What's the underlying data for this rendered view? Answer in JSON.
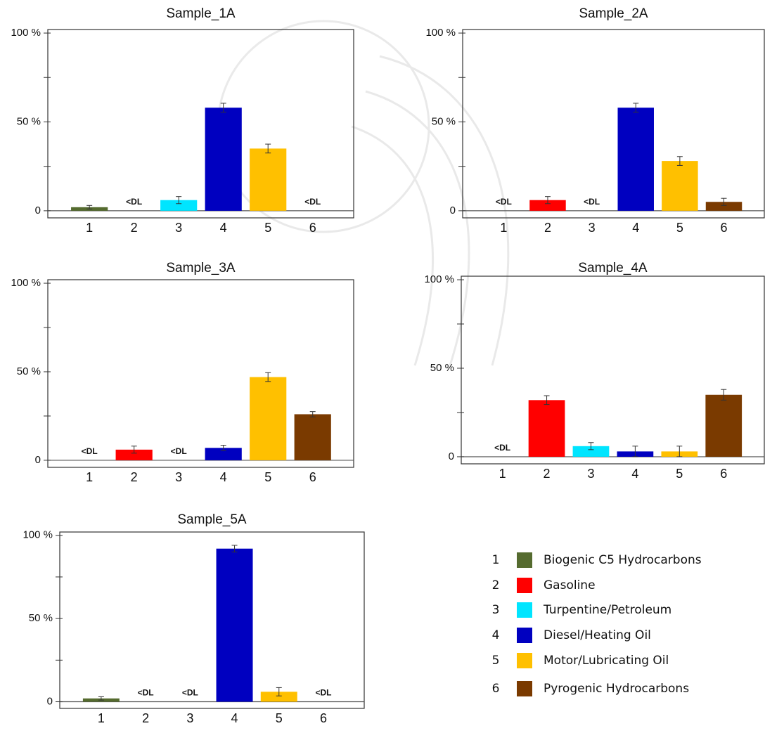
{
  "chart_data": [
    {
      "type": "bar",
      "title": "Sample_1A",
      "categories": [
        "1",
        "2",
        "3",
        "4",
        "5",
        "6"
      ],
      "values": [
        2,
        null,
        6,
        58,
        35,
        null
      ],
      "errors": [
        1,
        null,
        2,
        2.5,
        2.5,
        null
      ],
      "value_labels": [
        null,
        "<DL",
        null,
        null,
        null,
        "<DL"
      ],
      "colors": [
        "#556b2f",
        "#ff0000",
        "#00e5ff",
        "#0000c0",
        "#ffc000",
        "#7a3a00"
      ],
      "ylim": [
        -4,
        102
      ],
      "yticks": [
        0,
        {
          "value": 50,
          "label": "50 %"
        },
        {
          "value": 100,
          "label": "100 %"
        }
      ],
      "minor_yticks": [
        25,
        75
      ],
      "grid": false
    },
    {
      "type": "bar",
      "title": "Sample_2A",
      "categories": [
        "1",
        "2",
        "3",
        "4",
        "5",
        "6"
      ],
      "values": [
        null,
        6,
        null,
        58,
        28,
        5
      ],
      "errors": [
        null,
        2,
        null,
        2.5,
        2.5,
        2
      ],
      "value_labels": [
        "<DL",
        null,
        "<DL",
        null,
        null,
        null
      ],
      "colors": [
        "#556b2f",
        "#ff0000",
        "#00e5ff",
        "#0000c0",
        "#ffc000",
        "#7a3a00"
      ],
      "ylim": [
        -4,
        102
      ],
      "yticks": [
        0,
        {
          "value": 50,
          "label": "50 %"
        },
        {
          "value": 100,
          "label": "100 %"
        }
      ],
      "minor_yticks": [
        25,
        75
      ],
      "grid": false
    },
    {
      "type": "bar",
      "title": "Sample_3A",
      "categories": [
        "1",
        "2",
        "3",
        "4",
        "5",
        "6"
      ],
      "values": [
        null,
        6,
        null,
        7,
        47,
        26
      ],
      "errors": [
        null,
        2,
        null,
        1.5,
        2.5,
        1.5
      ],
      "value_labels": [
        "<DL",
        null,
        "<DL",
        null,
        null,
        null
      ],
      "colors": [
        "#556b2f",
        "#ff0000",
        "#00e5ff",
        "#0000c0",
        "#ffc000",
        "#7a3a00"
      ],
      "ylim": [
        -4,
        102
      ],
      "yticks": [
        0,
        {
          "value": 50,
          "label": "50 %"
        },
        {
          "value": 100,
          "label": "100 %"
        }
      ],
      "minor_yticks": [
        25,
        75
      ],
      "grid": false
    },
    {
      "type": "bar",
      "title": "Sample_4A",
      "categories": [
        "1",
        "2",
        "3",
        "4",
        "5",
        "6"
      ],
      "values": [
        null,
        32,
        6,
        3,
        3,
        35
      ],
      "errors": [
        null,
        2.5,
        2,
        3,
        3,
        3
      ],
      "value_labels": [
        "<DL",
        null,
        null,
        null,
        null,
        null
      ],
      "colors": [
        "#556b2f",
        "#ff0000",
        "#00e5ff",
        "#0000c0",
        "#ffc000",
        "#7a3a00"
      ],
      "ylim": [
        -4,
        102
      ],
      "yticks": [
        0,
        {
          "value": 50,
          "label": "50 %"
        },
        {
          "value": 100,
          "label": "100 %"
        }
      ],
      "minor_yticks": [
        25,
        75
      ],
      "grid": false
    },
    {
      "type": "bar",
      "title": "Sample_5A",
      "categories": [
        "1",
        "2",
        "3",
        "4",
        "5",
        "6"
      ],
      "values": [
        2,
        null,
        null,
        92,
        6,
        null
      ],
      "errors": [
        1,
        null,
        null,
        2,
        2.5,
        null
      ],
      "value_labels": [
        null,
        "<DL",
        "<DL",
        null,
        null,
        "<DL"
      ],
      "colors": [
        "#556b2f",
        "#ff0000",
        "#00e5ff",
        "#0000c0",
        "#ffc000",
        "#7a3a00"
      ],
      "ylim": [
        -4,
        102
      ],
      "yticks": [
        0,
        {
          "value": 50,
          "label": "50 %"
        },
        {
          "value": 100,
          "label": "100 %"
        }
      ],
      "minor_yticks": [
        25,
        75
      ],
      "grid": false
    }
  ],
  "legend": [
    {
      "key": "1",
      "label": "Biogenic C5 Hydrocarbons",
      "color": "#556b2f"
    },
    {
      "key": "2",
      "label": "Gasoline",
      "color": "#ff0000"
    },
    {
      "key": "3",
      "label": "Turpentine/Petroleum",
      "color": "#00e5ff"
    },
    {
      "key": "4",
      "label": "Diesel/Heating Oil",
      "color": "#0000c0"
    },
    {
      "key": "5",
      "label": "Motor/Lubricating Oil",
      "color": "#ffc000"
    },
    {
      "key": "6",
      "label": "Pyrogenic Hydrocarbons",
      "color": "#7a3a00"
    }
  ]
}
